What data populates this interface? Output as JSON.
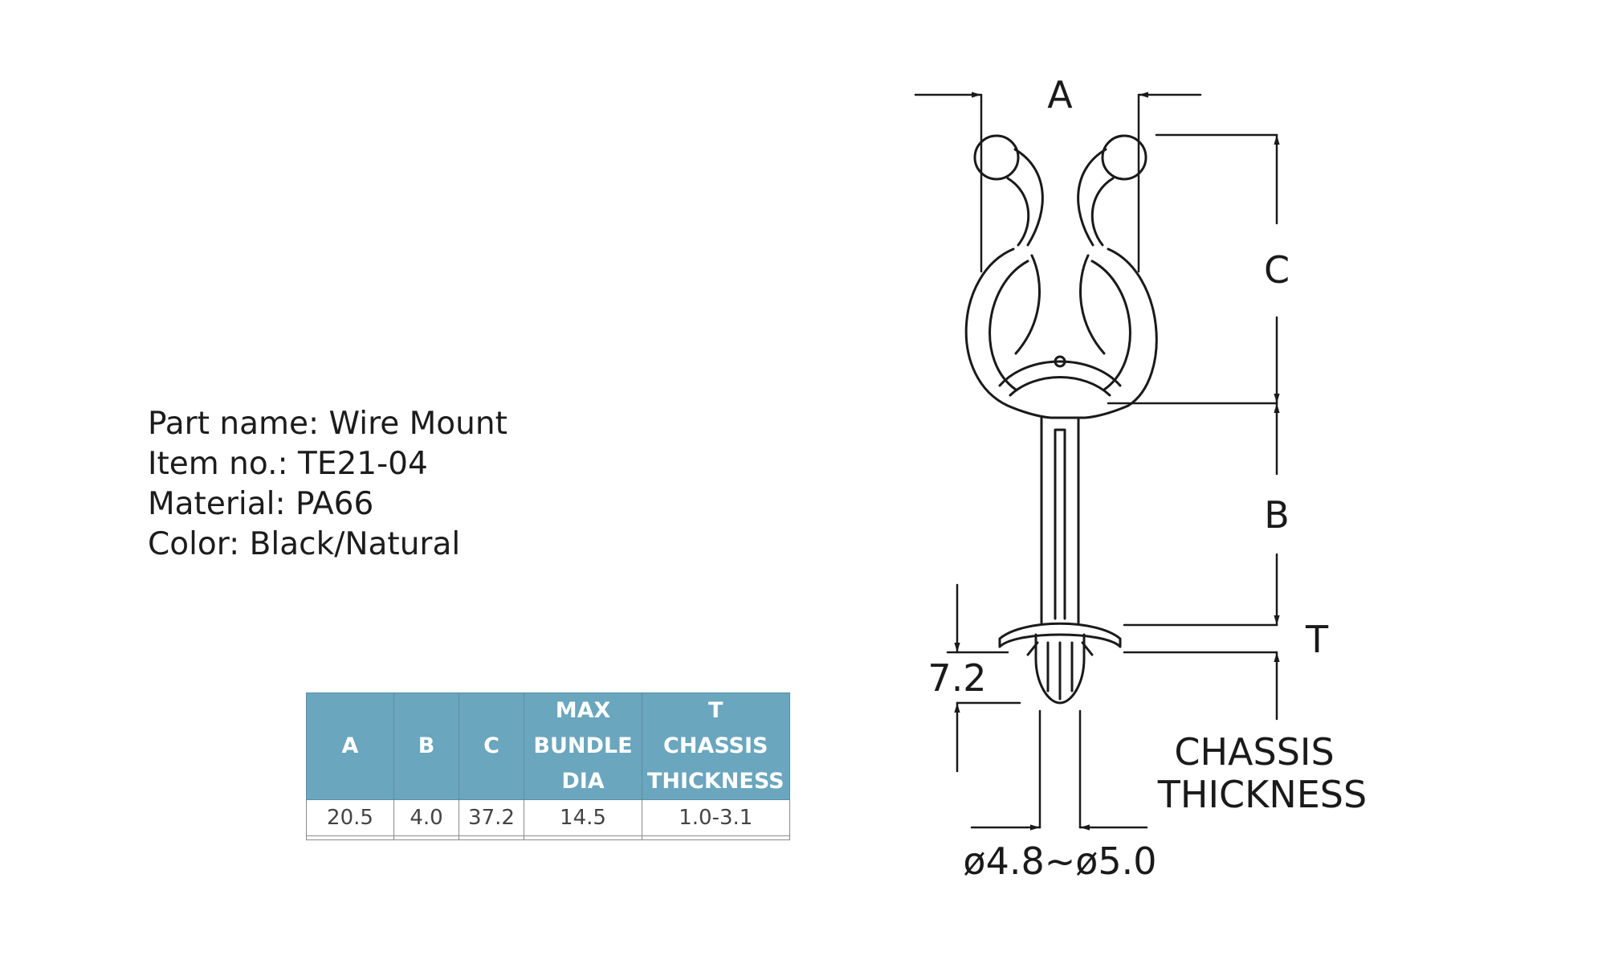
{
  "part_info": {
    "part_name": "Part name: Wire Mount",
    "item_no": "Item no.: TE21-04",
    "material": "Material: PA66",
    "color": "Color: Black/Natural"
  },
  "spec_table": {
    "headers": {
      "a": "A",
      "b": "B",
      "c": "C",
      "max_l1": "MAX",
      "max_l2": "BUNDLE",
      "max_l3": "DIA",
      "t_l1": "T",
      "t_l2": "CHASSIS",
      "t_l3": "THICKNESS"
    },
    "row": [
      "20.5",
      "4.0",
      "37.2",
      "14.5",
      "1.0-3.1"
    ]
  },
  "drawing": {
    "label_a": "A",
    "label_b": "B",
    "label_c": "C",
    "label_t": "T",
    "label_72": "7.2",
    "chassis_l1": "CHASSIS",
    "chassis_l2": "THICKNESS",
    "diameter": "ø4.8~ø5.0"
  }
}
